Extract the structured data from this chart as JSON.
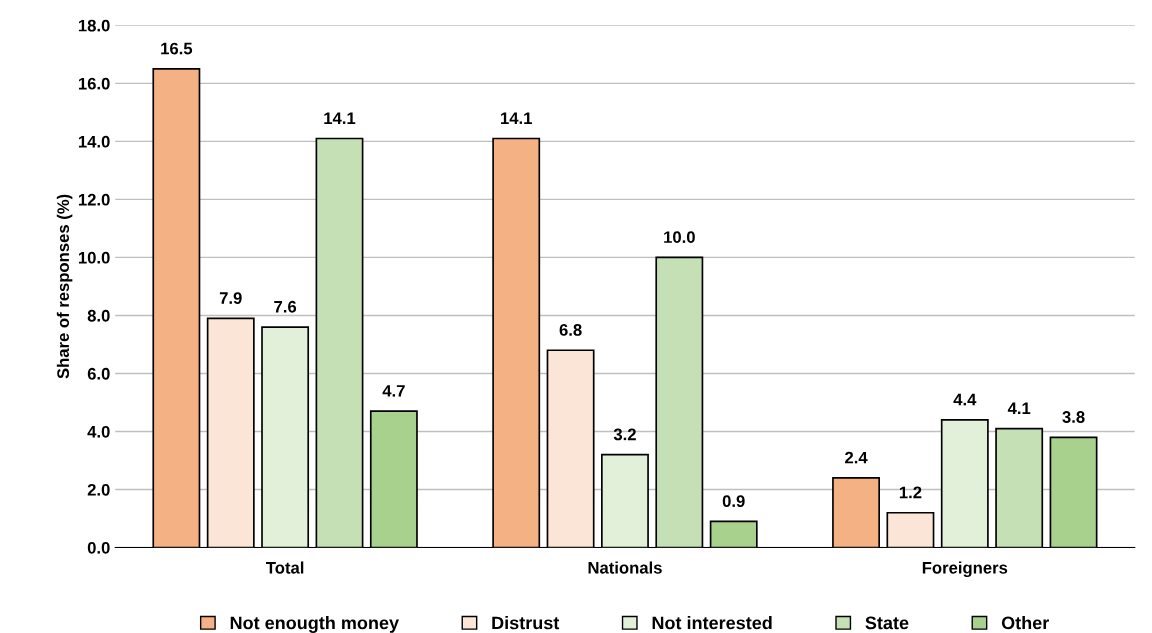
{
  "chart_data": {
    "type": "bar",
    "ylabel": "Share of responses (%)",
    "categories": [
      "Total",
      "Nationals",
      "Foreigners"
    ],
    "series": [
      {
        "name": "Not enougth money",
        "color": "#f4b183",
        "values": [
          16.5,
          14.1,
          2.4
        ],
        "value_labels": [
          "16.5",
          "14.1",
          "2.4"
        ]
      },
      {
        "name": "Distrust",
        "color": "#fbe5d6",
        "values": [
          7.9,
          6.8,
          1.2
        ],
        "value_labels": [
          "7.9",
          "6.8",
          "1.2"
        ]
      },
      {
        "name": "Not interested",
        "color": "#e2f0d9",
        "values": [
          7.6,
          3.2,
          4.4
        ],
        "value_labels": [
          "7.6",
          "3.2",
          "4.4"
        ]
      },
      {
        "name": "State",
        "color": "#c5e0b4",
        "values": [
          14.1,
          10.0,
          4.1
        ],
        "value_labels": [
          "14.1",
          "10.0",
          "4.1"
        ]
      },
      {
        "name": "Other",
        "color": "#a9d18e",
        "values": [
          4.7,
          0.9,
          3.8
        ],
        "value_labels": [
          "4.7",
          "0.9",
          "3.8"
        ]
      }
    ],
    "ylim": [
      0,
      18
    ],
    "yticks": [
      {
        "value": 0,
        "label": "0.0"
      },
      {
        "value": 2,
        "label": "2.0"
      },
      {
        "value": 4,
        "label": "4.0"
      },
      {
        "value": 6,
        "label": "6.0"
      },
      {
        "value": 8,
        "label": "8.0"
      },
      {
        "value": 10,
        "label": "10.0"
      },
      {
        "value": 12,
        "label": "12.0"
      },
      {
        "value": 14,
        "label": "14.0"
      },
      {
        "value": 16,
        "label": "16.0"
      },
      {
        "value": 18,
        "label": "18.0"
      }
    ],
    "grid": "y",
    "legend": "bottom"
  }
}
